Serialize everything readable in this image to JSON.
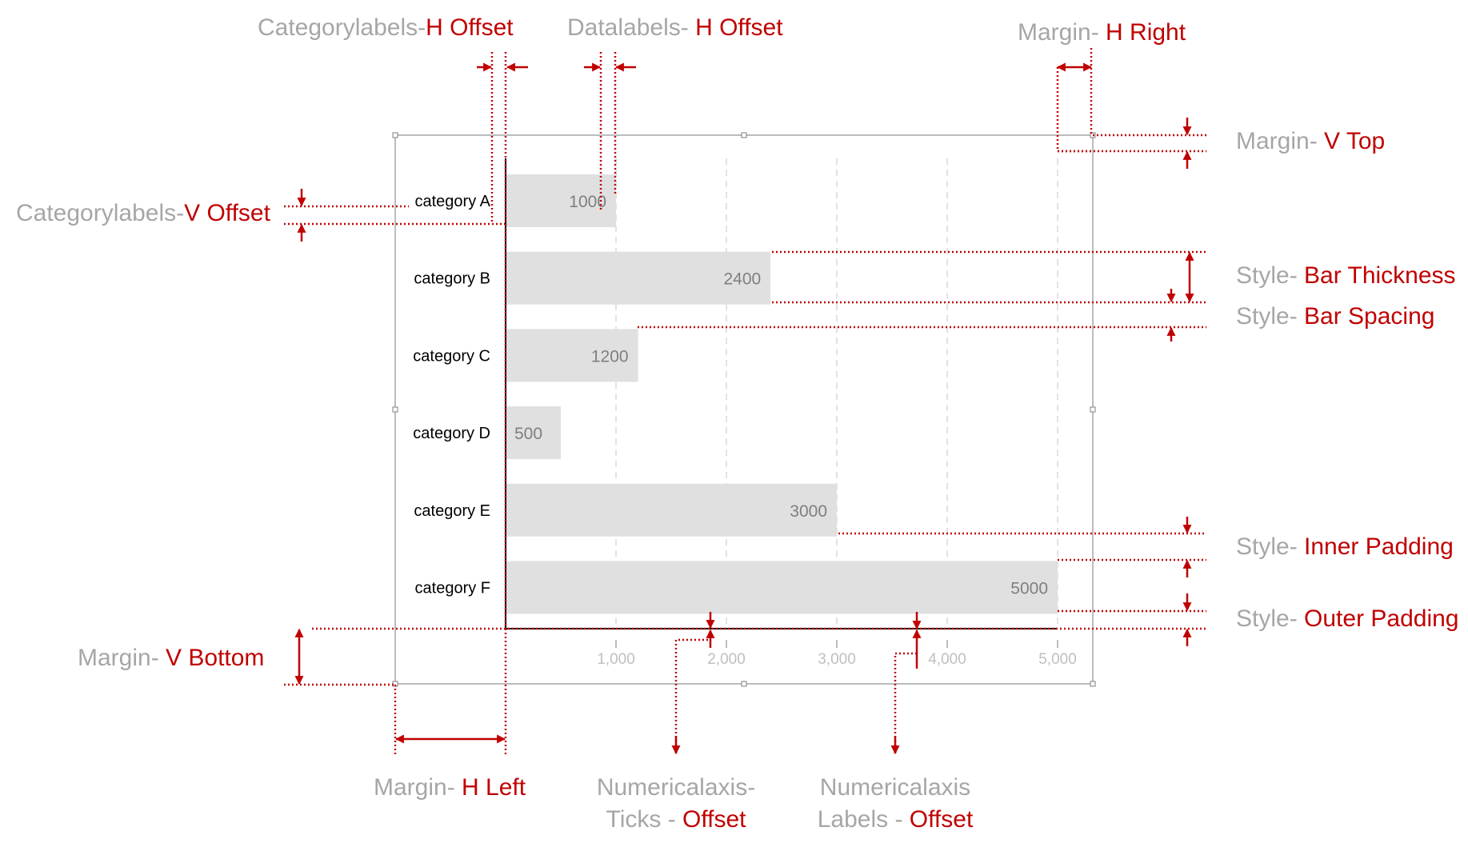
{
  "colors": {
    "annotation_red": "#c00000",
    "annotation_gray": "#a6a6a6",
    "bar_fill": "#e0e0e0",
    "axis": "#000000",
    "frame": "#a6a6a6"
  },
  "chart_data": {
    "type": "bar",
    "orientation": "horizontal",
    "categories": [
      "category A",
      "category B",
      "category C",
      "category D",
      "category E",
      "category F"
    ],
    "values": [
      1000,
      2400,
      1200,
      500,
      3000,
      5000
    ],
    "value_labels": [
      "1000",
      "2400",
      "1200",
      "500",
      "3000",
      "5000"
    ],
    "xlim": [
      0,
      5000
    ],
    "xticks": [
      1000,
      2000,
      3000,
      4000,
      5000
    ],
    "xtick_labels": [
      "1,000",
      "2,000",
      "3,000",
      "4,000",
      "5,000"
    ],
    "grid": "vertical dashed",
    "title": "",
    "xlabel": "",
    "ylabel": ""
  },
  "annotations": {
    "cat_h_offset": {
      "prefix": "Categorylabels-",
      "suffix": "H Offset"
    },
    "data_h_offset": {
      "prefix": "Datalabels- ",
      "suffix": "H Offset"
    },
    "margin_h_right": {
      "prefix": "Margin- ",
      "suffix": "H Right"
    },
    "margin_v_top": {
      "prefix": "Margin- ",
      "suffix": "V Top"
    },
    "cat_v_offset": {
      "prefix": "Categorylabels-",
      "suffix": "V Offset"
    },
    "bar_thickness": {
      "prefix": "Style- ",
      "suffix": "Bar Thickness"
    },
    "bar_spacing": {
      "prefix": "Style- ",
      "suffix": "Bar Spacing"
    },
    "inner_padding": {
      "prefix": "Style- ",
      "suffix": "Inner Padding"
    },
    "outer_padding": {
      "prefix": "Style- ",
      "suffix": "Outer Padding"
    },
    "margin_v_bottom": {
      "prefix": "Margin- ",
      "suffix": "V Bottom"
    },
    "margin_h_left": {
      "prefix": "Margin- ",
      "suffix": "H Left"
    },
    "ticks_offset": {
      "line1": "Numericalaxis-",
      "line2_prefix": "Ticks - ",
      "line2_suffix": "Offset"
    },
    "labels_offset": {
      "line1": "Numericalaxis",
      "line2_prefix": "Labels - ",
      "line2_suffix": "Offset"
    }
  }
}
